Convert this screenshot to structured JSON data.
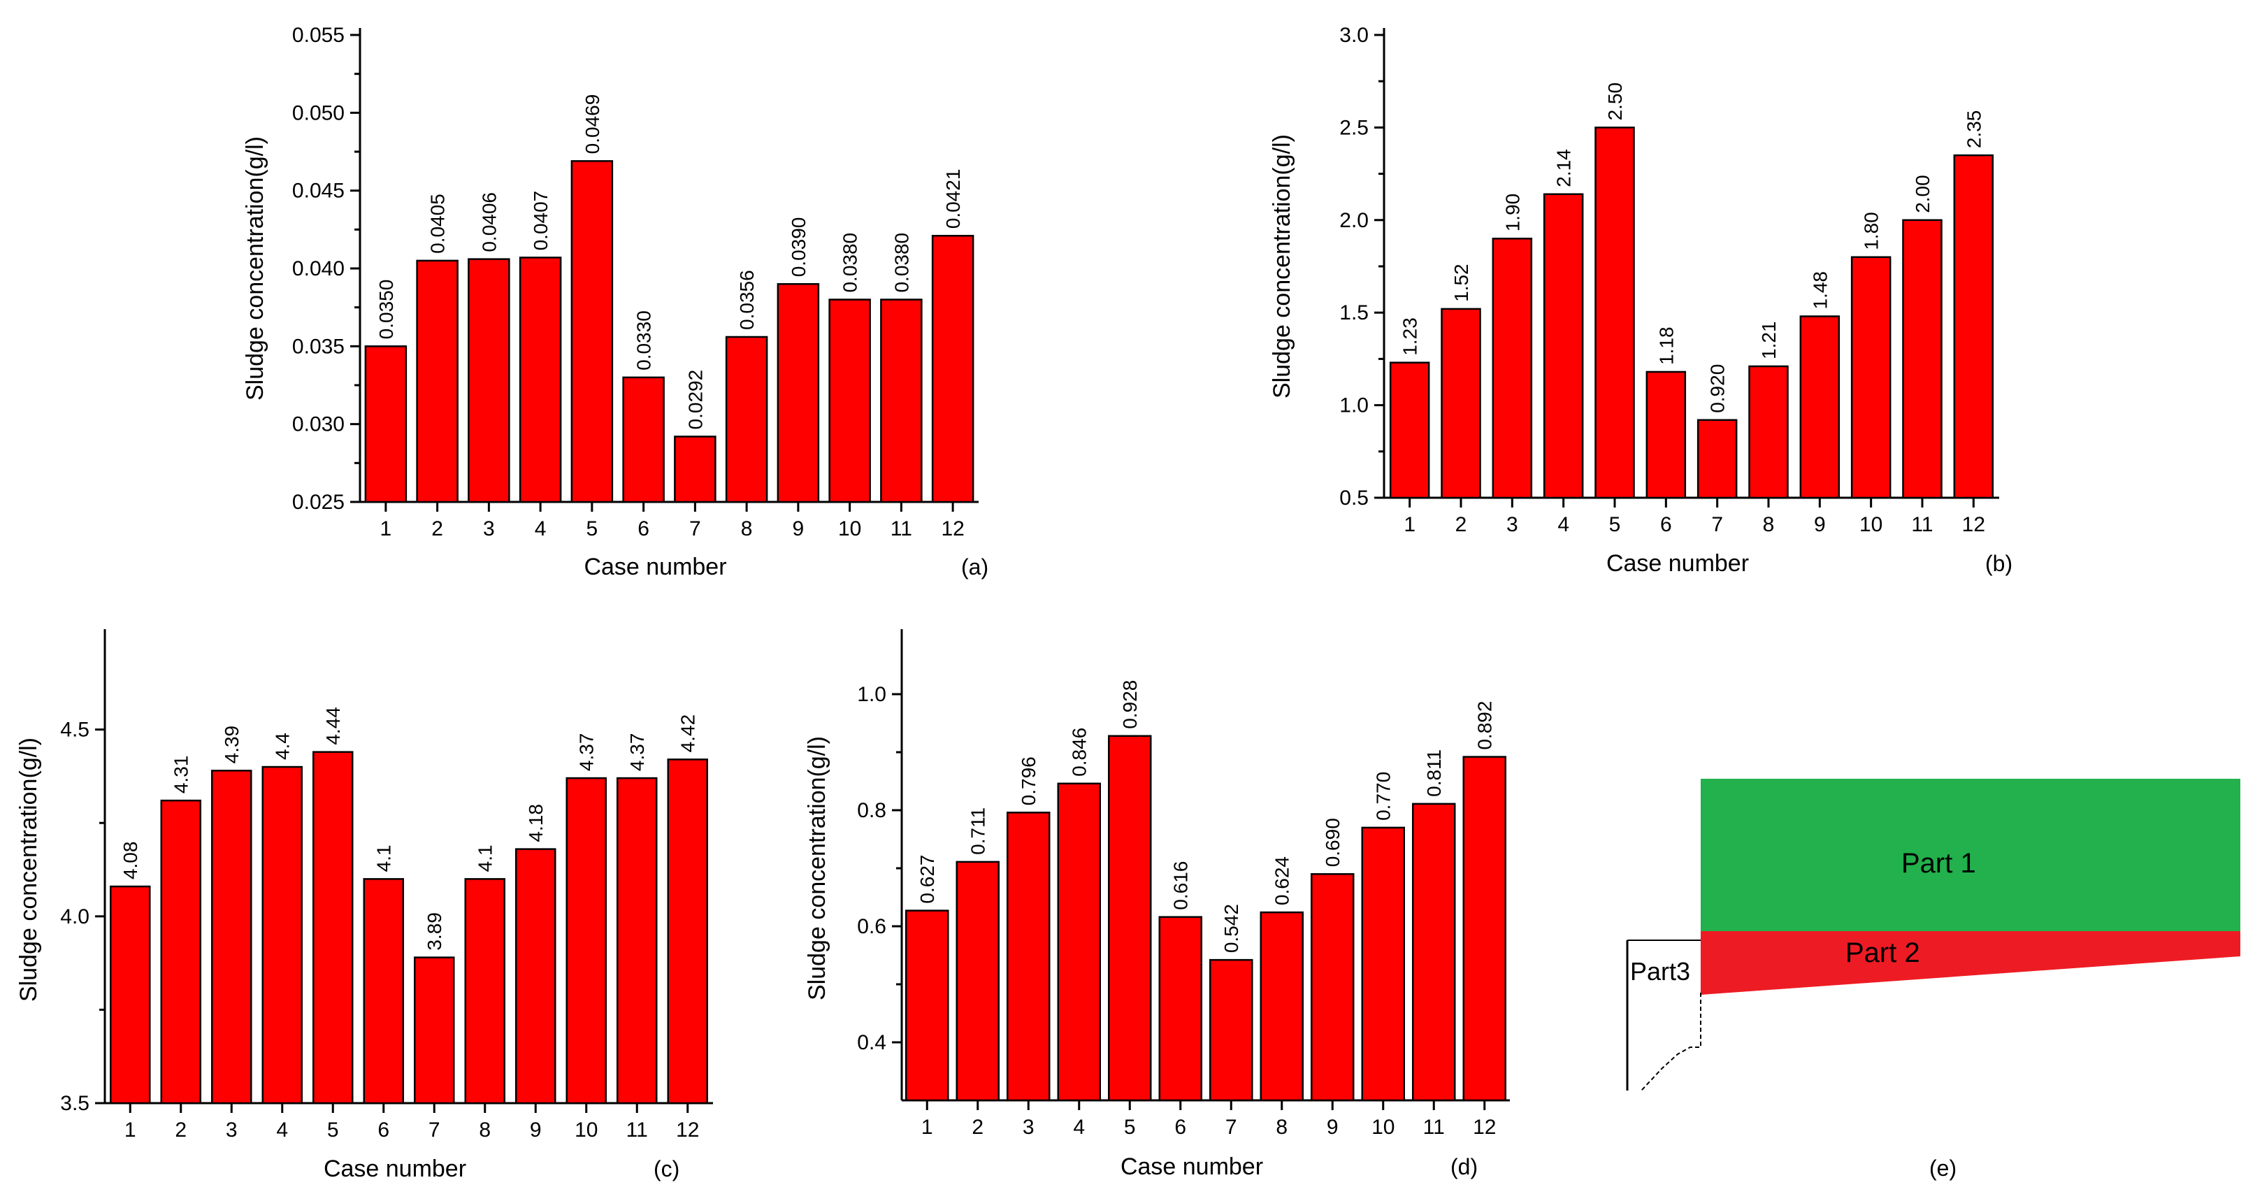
{
  "chart_data": [
    {
      "id": "a",
      "type": "bar",
      "panel_label": "(a)",
      "xlabel": "Case number",
      "ylabel": "Sludge concentration(g/l)",
      "categories": [
        "1",
        "2",
        "3",
        "4",
        "5",
        "6",
        "7",
        "8",
        "9",
        "10",
        "11",
        "12"
      ],
      "values": [
        0.035,
        0.0405,
        0.0406,
        0.0407,
        0.0469,
        0.033,
        0.0292,
        0.0356,
        0.039,
        0.038,
        0.038,
        0.0421
      ],
      "value_labels": [
        "0.0350",
        "0.0405",
        "0.0406",
        "0.0407",
        "0.0469",
        "0.0330",
        "0.0292",
        "0.0356",
        "0.0390",
        "0.0380",
        "0.0380",
        "0.0421"
      ],
      "ylim": [
        0.025,
        0.055
      ],
      "yticks": [
        0.025,
        0.03,
        0.035,
        0.04,
        0.045,
        0.05,
        0.055
      ],
      "ytick_labels": [
        "0.025",
        "0.030",
        "0.035",
        "0.040",
        "0.045",
        "0.050",
        "0.055"
      ]
    },
    {
      "id": "b",
      "type": "bar",
      "panel_label": "(b)",
      "xlabel": "Case number",
      "ylabel": "Sludge concentration(g/l)",
      "categories": [
        "1",
        "2",
        "3",
        "4",
        "5",
        "6",
        "7",
        "8",
        "9",
        "10",
        "11",
        "12"
      ],
      "values": [
        1.23,
        1.52,
        1.9,
        2.14,
        2.5,
        1.18,
        0.92,
        1.21,
        1.48,
        1.8,
        2.0,
        2.35
      ],
      "value_labels": [
        "1.23",
        "1.52",
        "1.90",
        "2.14",
        "2.50",
        "1.18",
        "0.920",
        "1.21",
        "1.48",
        "1.80",
        "2.00",
        "2.35"
      ],
      "ylim": [
        0.5,
        3.0
      ],
      "yticks": [
        0.5,
        1.0,
        1.5,
        2.0,
        2.5,
        3.0
      ],
      "ytick_labels": [
        "0.5",
        "1.0",
        "1.5",
        "2.0",
        "2.5",
        "3.0"
      ]
    },
    {
      "id": "c",
      "type": "bar",
      "panel_label": "(c)",
      "xlabel": "Case number",
      "ylabel": "Sludge concentration(g/l)",
      "categories": [
        "1",
        "2",
        "3",
        "4",
        "5",
        "6",
        "7",
        "8",
        "9",
        "10",
        "11",
        "12"
      ],
      "values": [
        4.08,
        4.31,
        4.39,
        4.4,
        4.44,
        4.1,
        3.89,
        4.1,
        4.18,
        4.37,
        4.37,
        4.42
      ],
      "value_labels": [
        "4.08",
        "4.31",
        "4.39",
        "4.4",
        "4.44",
        "4.1",
        "3.89",
        "4.1",
        "4.18",
        "4.37",
        "4.37",
        "4.42"
      ],
      "ylim": [
        3.5,
        4.75
      ],
      "yticks": [
        3.5,
        4.0,
        4.5
      ],
      "ytick_labels": [
        "3.5",
        "4.0",
        "4.5"
      ]
    },
    {
      "id": "d",
      "type": "bar",
      "panel_label": "(d)",
      "xlabel": "Case number",
      "ylabel": "Sludge concentration(g/l)",
      "categories": [
        "1",
        "2",
        "3",
        "4",
        "5",
        "6",
        "7",
        "8",
        "9",
        "10",
        "11",
        "12"
      ],
      "values": [
        0.627,
        0.711,
        0.796,
        0.846,
        0.928,
        0.616,
        0.542,
        0.624,
        0.69,
        0.77,
        0.811,
        0.892
      ],
      "value_labels": [
        "0.627",
        "0.711",
        "0.796",
        "0.846",
        "0.928",
        "0.616",
        "0.542",
        "0.624",
        "0.690",
        "0.770",
        "0.811",
        "0.892"
      ],
      "ylim": [
        0.3,
        1.1
      ],
      "yticks": [
        0.4,
        0.6,
        0.8,
        1.0
      ],
      "ytick_labels": [
        "0.4",
        "0.6",
        "0.8",
        "1.0"
      ]
    }
  ],
  "diagram_e": {
    "panel_label": "(e)",
    "part1_label": "Part 1",
    "part2_label": "Part 2",
    "part3_label": "Part3",
    "part1_color": "#22b14c",
    "part2_color": "#ed1c24"
  },
  "colors": {
    "bar": "#ff0000",
    "axis": "#000000"
  }
}
